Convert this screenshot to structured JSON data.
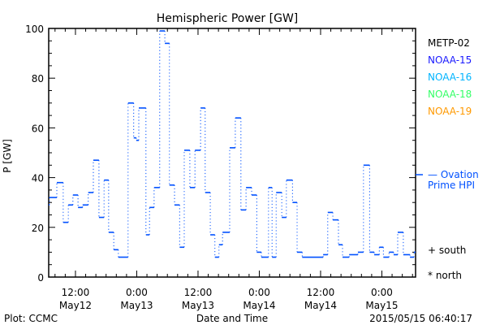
{
  "chart_data": {
    "type": "line",
    "title": "Hemispheric Power [GW]",
    "xlabel": "Date and Time",
    "ylabel": "P [GW]",
    "ylim": [
      0,
      100
    ],
    "yticks": [
      0,
      20,
      40,
      60,
      80,
      100
    ],
    "xlim_hours_from_may12_0000": [
      6.76,
      78.6
    ],
    "xticks": [
      {
        "hour": 12,
        "line1": "12:00",
        "line2": "May12"
      },
      {
        "hour": 24,
        "line1": "0:00",
        "line2": "May13"
      },
      {
        "hour": 36,
        "line1": "12:00",
        "line2": "May13"
      },
      {
        "hour": 48,
        "line1": "0:00",
        "line2": "May14"
      },
      {
        "hour": 60,
        "line1": "12:00",
        "line2": "May14"
      },
      {
        "hour": 72,
        "line1": "0:00",
        "line2": "May15"
      }
    ],
    "series": [
      {
        "name": "Ovation Prime HPI",
        "color": "#0050ff",
        "style": "step",
        "points": [
          [
            6.76,
            29
          ],
          [
            6.9,
            32
          ],
          [
            8.35,
            38
          ],
          [
            9.6,
            22
          ],
          [
            10.6,
            29
          ],
          [
            11.5,
            33
          ],
          [
            12.5,
            28
          ],
          [
            13.4,
            29
          ],
          [
            14.5,
            34
          ],
          [
            15.5,
            47
          ],
          [
            16.6,
            24
          ],
          [
            17.6,
            39
          ],
          [
            18.5,
            18
          ],
          [
            19.5,
            11
          ],
          [
            20.4,
            8
          ],
          [
            22.3,
            70
          ],
          [
            23.4,
            56
          ],
          [
            23.9,
            55
          ],
          [
            24.4,
            68
          ],
          [
            25.8,
            17
          ],
          [
            26.5,
            28
          ],
          [
            27.4,
            36
          ],
          [
            28.5,
            99
          ],
          [
            29.5,
            94
          ],
          [
            30.4,
            37
          ],
          [
            31.4,
            29
          ],
          [
            32.4,
            12
          ],
          [
            33.3,
            51
          ],
          [
            34.4,
            36
          ],
          [
            35.4,
            51
          ],
          [
            36.5,
            68
          ],
          [
            37.4,
            34
          ],
          [
            38.4,
            17
          ],
          [
            39.3,
            8
          ],
          [
            40.1,
            13
          ],
          [
            40.8,
            18
          ],
          [
            42.2,
            52
          ],
          [
            43.3,
            64
          ],
          [
            44.4,
            27
          ],
          [
            45.4,
            36
          ],
          [
            46.5,
            33
          ],
          [
            47.5,
            10
          ],
          [
            48.4,
            8
          ],
          [
            49.8,
            36
          ],
          [
            50.5,
            8
          ],
          [
            51.3,
            34
          ],
          [
            52.4,
            24
          ],
          [
            53.3,
            39
          ],
          [
            54.5,
            30
          ],
          [
            55.4,
            10
          ],
          [
            56.4,
            8
          ],
          [
            60.5,
            9
          ],
          [
            61.4,
            26
          ],
          [
            62.4,
            23
          ],
          [
            63.5,
            13
          ],
          [
            64.3,
            8
          ],
          [
            65.6,
            9
          ],
          [
            67.3,
            10
          ],
          [
            68.4,
            45
          ],
          [
            69.6,
            10
          ],
          [
            70.5,
            9
          ],
          [
            71.5,
            12
          ],
          [
            72.3,
            8
          ],
          [
            73.4,
            10
          ],
          [
            74.3,
            9
          ],
          [
            75.1,
            18
          ],
          [
            76.2,
            9
          ],
          [
            77.5,
            8
          ],
          [
            78.3,
            10
          ]
        ]
      }
    ],
    "legend": {
      "satellites": [
        {
          "label": "METP-02",
          "color": "#000000"
        },
        {
          "label": "NOAA-15",
          "color": "#1a1aff"
        },
        {
          "label": "NOAA-16",
          "color": "#00b4ff"
        },
        {
          "label": "NOAA-18",
          "color": "#33ff66"
        },
        {
          "label": "NOAA-19",
          "color": "#ff9900"
        }
      ],
      "model_line1": "— Ovation",
      "model_line2": "Prime HPI",
      "south": "+ south",
      "north": "* north"
    }
  },
  "footer": {
    "left": "Plot: CCMC",
    "timestamp": "2015/05/15 06:40:17"
  }
}
